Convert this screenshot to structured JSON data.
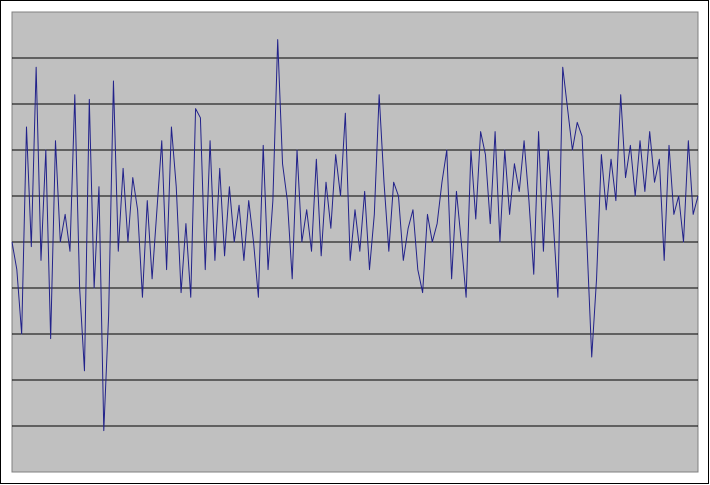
{
  "chart_data": {
    "type": "line",
    "ylim": [
      0,
      10
    ],
    "yticks": [
      1,
      2,
      3,
      4,
      5,
      6,
      7,
      8,
      9
    ],
    "grid": true,
    "series": [
      {
        "color": "#22228a",
        "values": [
          5.0,
          4.4,
          3.0,
          7.5,
          4.9,
          8.8,
          4.6,
          7.0,
          2.9,
          7.2,
          5.0,
          5.6,
          4.8,
          8.2,
          4.0,
          2.2,
          8.1,
          4.0,
          6.2,
          0.9,
          3.4,
          8.5,
          4.8,
          6.6,
          5.0,
          6.4,
          5.7,
          3.8,
          5.9,
          4.2,
          5.7,
          7.2,
          4.4,
          7.5,
          6.2,
          3.9,
          5.4,
          3.8,
          7.9,
          7.7,
          4.4,
          7.2,
          4.6,
          6.6,
          4.7,
          6.2,
          5.0,
          5.8,
          4.6,
          5.9,
          5.0,
          3.8,
          7.1,
          4.4,
          5.9,
          9.4,
          6.7,
          5.9,
          4.2,
          7.0,
          5.0,
          5.7,
          4.8,
          6.8,
          4.7,
          6.3,
          5.3,
          6.9,
          6.0,
          7.8,
          4.6,
          5.7,
          4.8,
          6.1,
          4.4,
          5.6,
          8.2,
          6.3,
          4.8,
          6.3,
          6.0,
          4.6,
          5.3,
          5.7,
          4.4,
          3.9,
          5.6,
          5.0,
          5.4,
          6.3,
          7.0,
          4.2,
          6.1,
          5.0,
          3.8,
          7.0,
          5.5,
          7.4,
          6.9,
          5.4,
          7.4,
          5.0,
          7.0,
          5.6,
          6.7,
          6.1,
          7.2,
          5.9,
          4.3,
          7.4,
          4.8,
          7.0,
          5.5,
          3.8,
          8.8,
          7.9,
          7.0,
          7.6,
          7.3,
          5.0,
          2.5,
          4.2,
          6.9,
          5.7,
          6.8,
          5.9,
          8.2,
          6.4,
          7.1,
          6.0,
          7.2,
          6.1,
          7.4,
          6.3,
          6.8,
          4.6,
          7.1,
          5.6,
          6.0,
          5.0,
          7.2,
          5.6,
          6.0
        ]
      }
    ]
  }
}
